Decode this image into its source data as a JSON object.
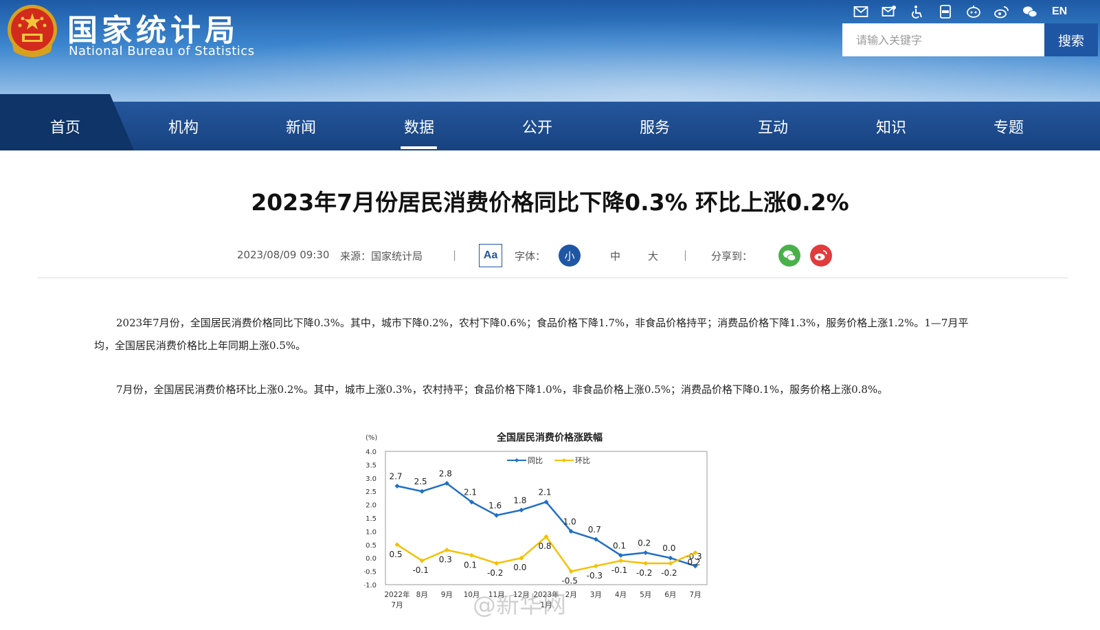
{
  "header": {
    "title": "国家统计局",
    "subtitle": "National Bureau of Statistics",
    "lang": "EN",
    "icons": [
      "mail-icon",
      "email-settings-icon",
      "accessibility-icon",
      "app-icon",
      "robot-icon",
      "weibo-icon",
      "wechat-icon"
    ],
    "search_placeholder": "请输入关键字",
    "search_button": "搜索"
  },
  "nav": {
    "items": [
      "首页",
      "机构",
      "新闻",
      "数据",
      "公开",
      "服务",
      "互动",
      "知识",
      "专题"
    ],
    "active": "数据"
  },
  "article": {
    "title": "2023年7月份居民消费价格同比下降0.3% 环比上涨0.2%",
    "date": "2023/08/09 09:30",
    "source": "来源：国家统计局",
    "separator": "|",
    "aa_label": "Aa",
    "font_label": "字体：",
    "font_small": "小",
    "font_medium": "中",
    "font_large": "大",
    "share_label": "分享到：",
    "para1": "2023年7月份，全国居民消费价格同比下降0.3%。其中，城市下降0.2%，农村下降0.6%；食品价格下降1.7%，非食品价格持平；消费品价格下降1.3%，服务价格上涨1.2%。1—7月平均，全国居民消费价格比上年同期上涨0.5%。",
    "para2": "7月份，全国居民消费价格环比上涨0.2%。其中，城市上涨0.3%，农村持平；食品价格下降1.0%，非食品价格上涨0.5%；消费品价格下降0.1%，服务价格上涨0.8%。",
    "watermark": "@新华网"
  },
  "chart_data": {
    "type": "line",
    "title": "全国居民消费价格涨跌幅",
    "ylabel": "(%)",
    "ylim": [
      -1.0,
      4.0
    ],
    "yticks": [
      "4.0",
      "3.5",
      "3.0",
      "2.5",
      "2.0",
      "1.5",
      "1.0",
      "0.5",
      "0.0",
      "-0.5",
      "-1.0"
    ],
    "categories": [
      "2022年7月",
      "8月",
      "9月",
      "10月",
      "11月",
      "12月",
      "2023年1月",
      "2月",
      "3月",
      "4月",
      "5月",
      "6月",
      "7月"
    ],
    "series": [
      {
        "name": "同比",
        "color": "#1f6fc5",
        "values": [
          2.7,
          2.5,
          2.8,
          2.1,
          1.6,
          1.8,
          2.1,
          1.0,
          0.7,
          0.1,
          0.2,
          0.0,
          -0.3
        ],
        "labels": [
          "2.7",
          "2.5",
          "2.8",
          "2.1",
          "1.6",
          "1.8",
          "2.1",
          "1.0",
          "0.7",
          "0.1",
          "0.2",
          "0.0",
          "-0.3"
        ]
      },
      {
        "name": "环比",
        "color": "#f5c000",
        "values": [
          0.5,
          -0.1,
          0.3,
          0.1,
          -0.2,
          0.0,
          0.8,
          -0.5,
          -0.3,
          -0.1,
          -0.2,
          -0.2,
          0.2
        ],
        "labels": [
          "0.5",
          "-0.1",
          "0.3",
          "0.1",
          "-0.2",
          "0.0",
          "0.8",
          "-0.5",
          "-0.3",
          "-0.1",
          "-0.2",
          "-0.2",
          "0.2"
        ]
      }
    ],
    "legend_position": "top-center",
    "grid": false
  }
}
